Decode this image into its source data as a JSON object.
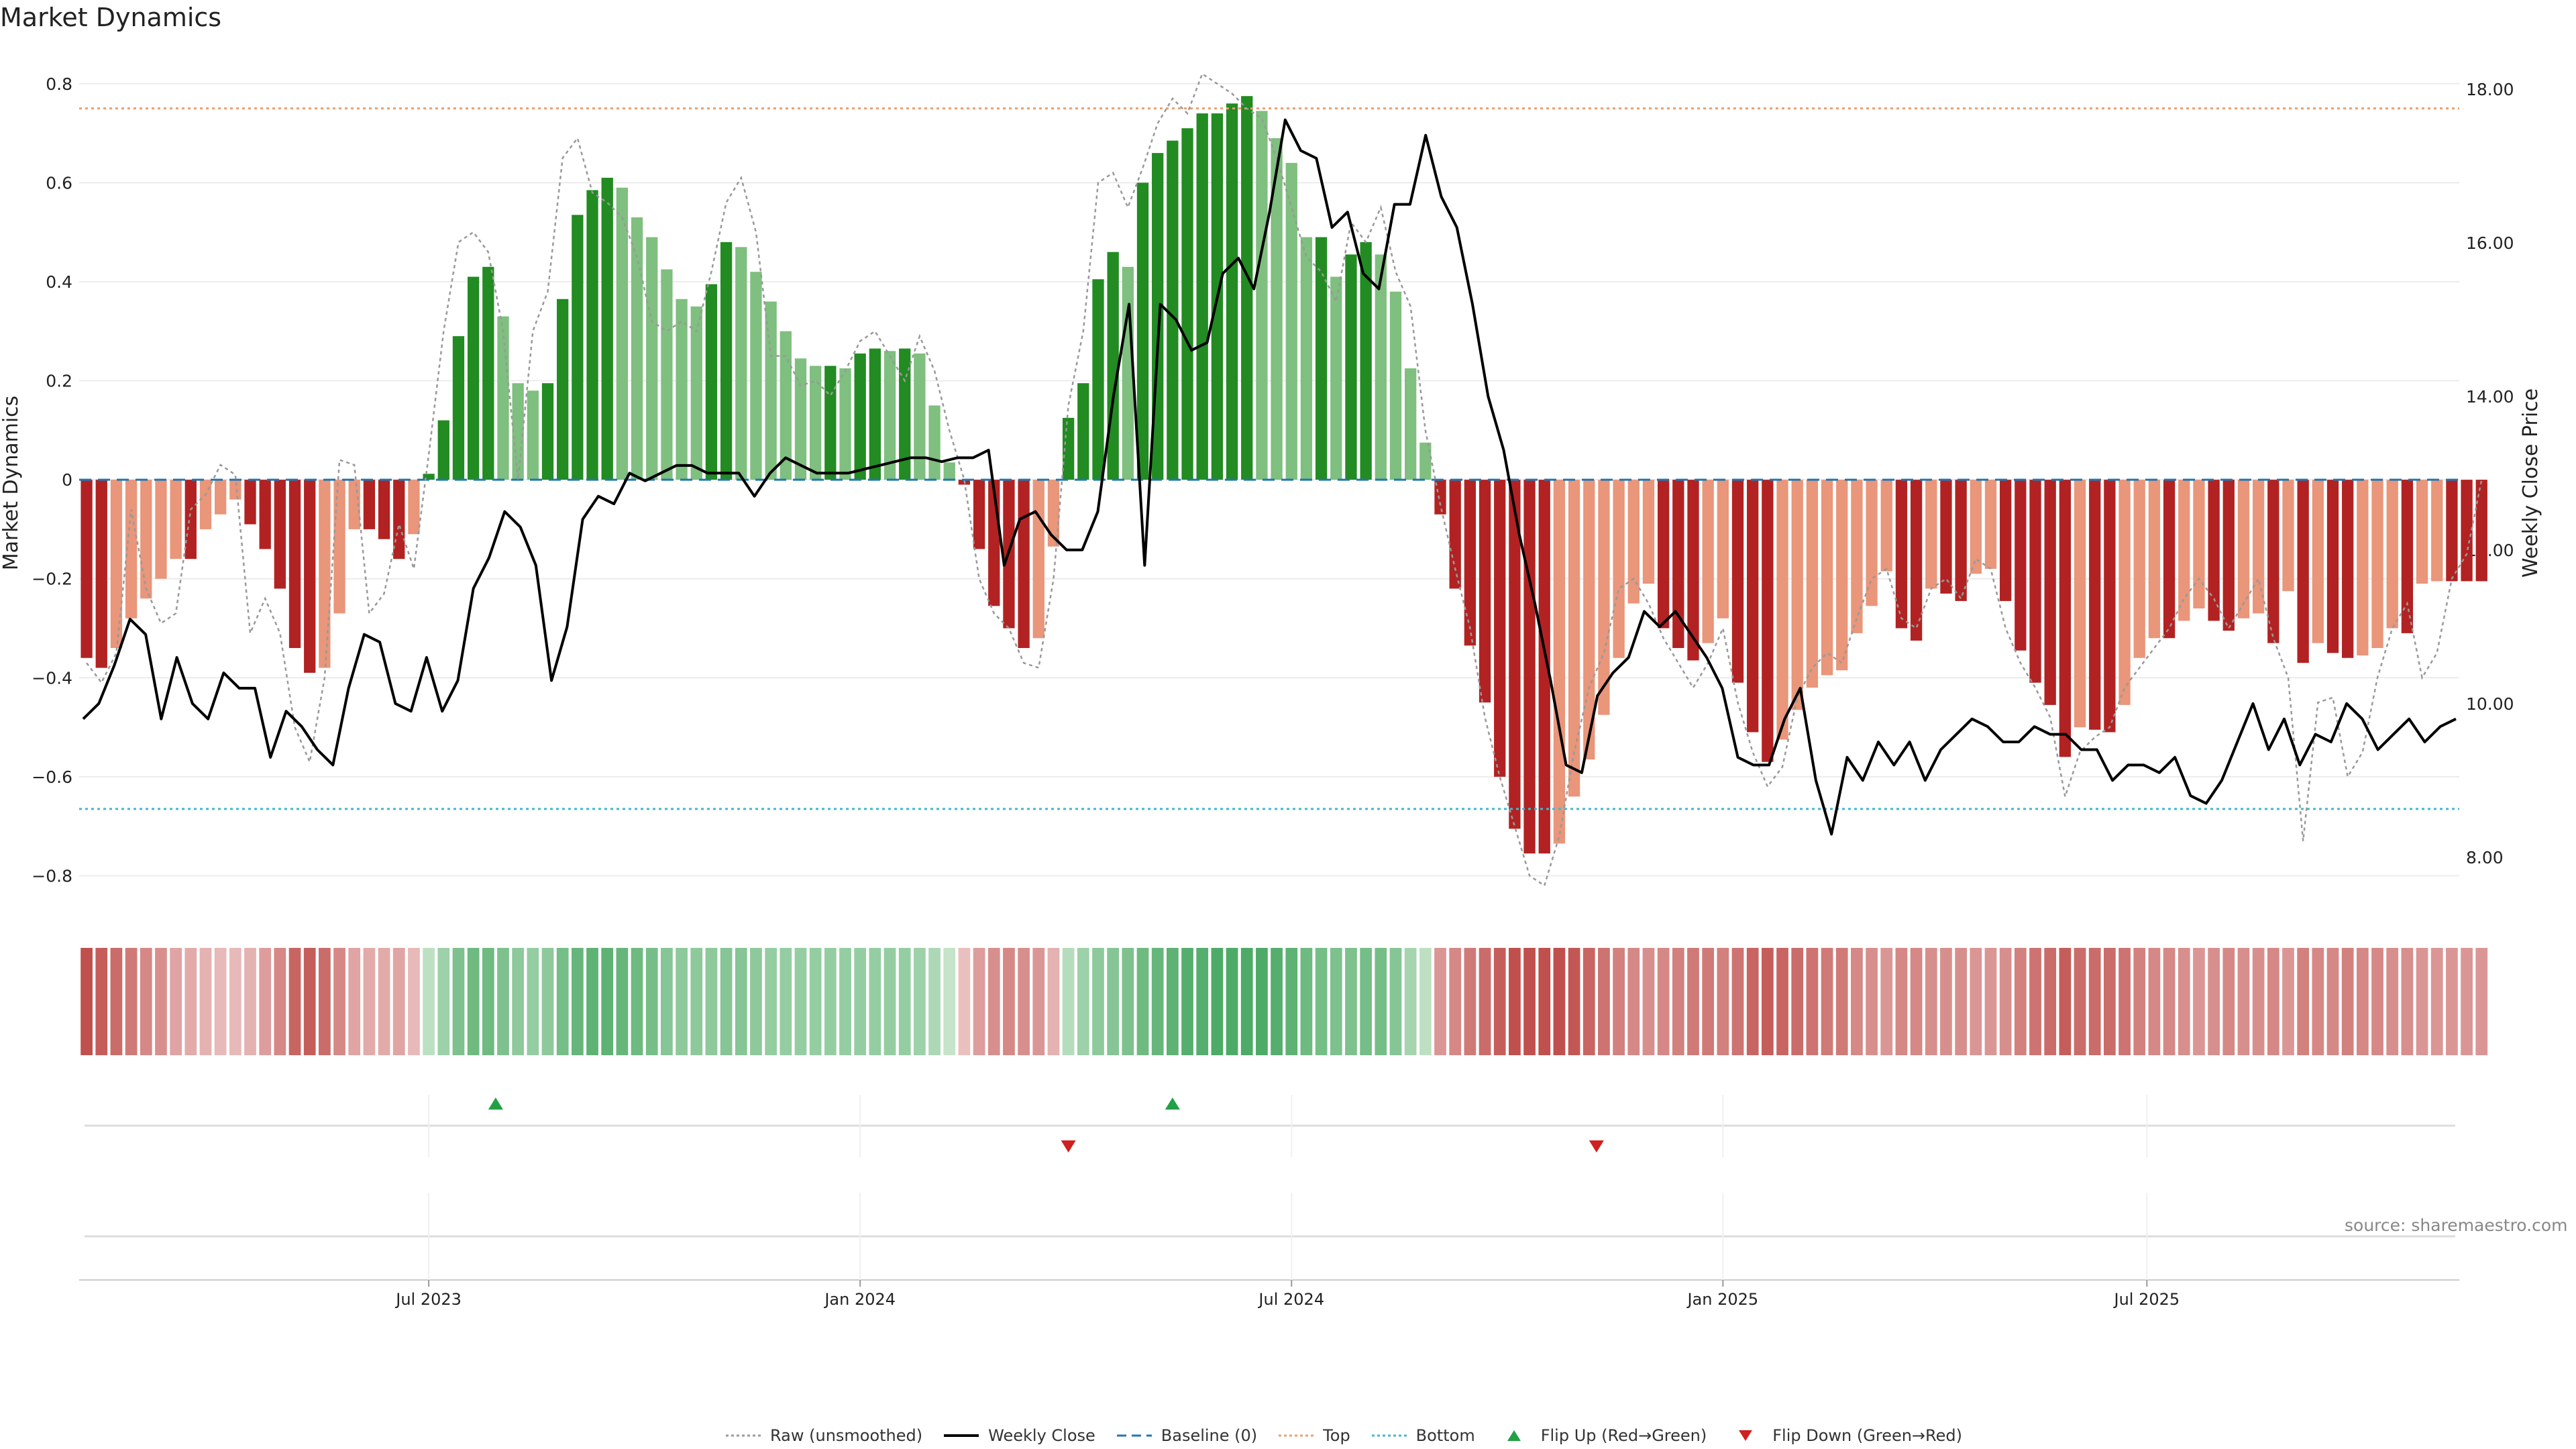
{
  "title": "Market Dynamics",
  "source": "source: sharemaestro.com",
  "colors": {
    "strong_green": "#228B22",
    "light_green": "#7FBF7F",
    "strong_red": "#B22222",
    "light_red": "#E9967A",
    "raw_line": "#999999",
    "weekly_close": "#000000",
    "baseline": "#1f77b4",
    "top_line": "#E9A070",
    "bottom_line": "#40B8D0",
    "flip_up": "#22A045",
    "flip_down": "#D02020"
  },
  "legend": [
    {
      "label": "Raw (unsmoothed)",
      "style": "dotted",
      "color": "#999999",
      "icon": "dotted-line"
    },
    {
      "label": "Weekly Close",
      "style": "solid",
      "color": "#000000",
      "icon": "solid-line"
    },
    {
      "label": "Baseline (0)",
      "style": "dashed",
      "color": "#1f77b4",
      "icon": "dashed-line"
    },
    {
      "label": "Top",
      "style": "dotted",
      "color": "#E9A070",
      "icon": "dotted-line"
    },
    {
      "label": "Bottom",
      "style": "dotted",
      "color": "#40B8D0",
      "icon": "dotted-line"
    },
    {
      "label": "Flip Up (Red→Green)",
      "style": "triangle-up",
      "color": "#22A045",
      "icon": "triangle-up-icon"
    },
    {
      "label": "Flip Down (Green→Red)",
      "style": "triangle-down",
      "color": "#D02020",
      "icon": "triangle-down-icon"
    }
  ],
  "chart_data": {
    "type": "bar",
    "title": "Market Dynamics",
    "ylabel_left": "Market Dynamics",
    "ylabel_right": "Weekly Close Price",
    "ylim_left": [
      -0.84,
      0.82
    ],
    "ylim_right": [
      7.5,
      18.2
    ],
    "yticks_left": [
      {
        "v": 0.8,
        "label": "0.8"
      },
      {
        "v": 0.6,
        "label": "0.6"
      },
      {
        "v": 0.4,
        "label": "0.4"
      },
      {
        "v": 0.2,
        "label": "0.2"
      },
      {
        "v": 0,
        "label": "0"
      },
      {
        "v": -0.2,
        "label": "−0.2"
      },
      {
        "v": -0.4,
        "label": "−0.4"
      },
      {
        "v": -0.6,
        "label": "−0.6"
      },
      {
        "v": -0.8,
        "label": "−0.8"
      }
    ],
    "yticks_right": [
      {
        "v": 18,
        "label": "18.00"
      },
      {
        "v": 16,
        "label": "16.00"
      },
      {
        "v": 14,
        "label": "14.00"
      },
      {
        "v": 12,
        "label": "12.00"
      },
      {
        "v": 10,
        "label": "10.00"
      },
      {
        "v": 8,
        "label": "8.00"
      }
    ],
    "xticks": [
      {
        "index": 23,
        "label": "Jul 2023"
      },
      {
        "index": 52,
        "label": "Jan 2024"
      },
      {
        "index": 81,
        "label": "Jul 2024"
      },
      {
        "index": 110,
        "label": "Jan 2025"
      },
      {
        "index": 138.5,
        "label": "Jul 2025"
      }
    ],
    "grid": true,
    "legend_position": "bottom-center",
    "top_level": 0.75,
    "bottom_level": -0.665,
    "baseline": 0,
    "weeks": 160,
    "dynamics": [
      -0.36,
      -0.38,
      -0.34,
      -0.28,
      -0.24,
      -0.2,
      -0.16,
      -0.16,
      -0.1,
      -0.07,
      -0.04,
      -0.09,
      -0.14,
      -0.22,
      -0.34,
      -0.39,
      -0.38,
      -0.27,
      -0.1,
      -0.1,
      -0.12,
      -0.16,
      -0.11,
      0.012,
      0.12,
      0.29,
      0.41,
      0.43,
      0.33,
      0.195,
      0.18,
      0.195,
      0.365,
      0.535,
      0.585,
      0.61,
      0.59,
      0.53,
      0.49,
      0.425,
      0.365,
      0.35,
      0.395,
      0.48,
      0.47,
      0.42,
      0.36,
      0.3,
      0.245,
      0.23,
      0.23,
      0.225,
      0.255,
      0.265,
      0.26,
      0.265,
      0.255,
      0.15,
      0.035,
      -0.01,
      -0.14,
      -0.255,
      -0.3,
      -0.34,
      -0.32,
      -0.135,
      0.125,
      0.195,
      0.405,
      0.46,
      0.43,
      0.6,
      0.66,
      0.685,
      0.71,
      0.74,
      0.74,
      0.76,
      0.775,
      0.745,
      0.69,
      0.64,
      0.49,
      0.49,
      0.41,
      0.455,
      0.48,
      0.455,
      0.38,
      0.225,
      0.075,
      -0.07,
      -0.22,
      -0.335,
      -0.45,
      -0.6,
      -0.705,
      -0.755,
      -0.755,
      -0.735,
      -0.64,
      -0.565,
      -0.475,
      -0.36,
      -0.25,
      -0.21,
      -0.3,
      -0.34,
      -0.365,
      -0.33,
      -0.28,
      -0.41,
      -0.51,
      -0.57,
      -0.525,
      -0.465,
      -0.42,
      -0.395,
      -0.385,
      -0.31,
      -0.255,
      -0.185,
      -0.3,
      -0.325,
      -0.22,
      -0.23,
      -0.245,
      -0.19,
      -0.18,
      -0.245,
      -0.345,
      -0.41,
      -0.455,
      -0.56,
      -0.5,
      -0.505,
      -0.51,
      -0.455,
      -0.36,
      -0.32,
      -0.32,
      -0.285,
      -0.26,
      -0.285,
      -0.305,
      -0.28,
      -0.27,
      -0.33,
      -0.225,
      -0.37,
      -0.33,
      -0.35,
      -0.36,
      -0.355,
      -0.34,
      -0.3,
      -0.31,
      -0.21,
      -0.205,
      -0.205,
      -0.205,
      -0.205
    ],
    "raw": [
      -0.37,
      -0.41,
      -0.35,
      -0.06,
      -0.22,
      -0.29,
      -0.27,
      -0.06,
      -0.03,
      0.03,
      0.01,
      -0.31,
      -0.24,
      -0.31,
      -0.5,
      -0.57,
      -0.4,
      0.04,
      0.03,
      -0.27,
      -0.23,
      -0.09,
      -0.18,
      0.05,
      0.3,
      0.48,
      0.5,
      0.46,
      0.3,
      0.0,
      0.3,
      0.38,
      0.65,
      0.69,
      0.58,
      0.56,
      0.53,
      0.45,
      0.32,
      0.3,
      0.32,
      0.3,
      0.42,
      0.56,
      0.61,
      0.5,
      0.25,
      0.25,
      0.19,
      0.2,
      0.17,
      0.22,
      0.28,
      0.3,
      0.25,
      0.2,
      0.29,
      0.22,
      0.1,
      0.0,
      -0.2,
      -0.27,
      -0.3,
      -0.37,
      -0.38,
      -0.2,
      0.15,
      0.3,
      0.6,
      0.62,
      0.55,
      0.63,
      0.72,
      0.77,
      0.74,
      0.82,
      0.8,
      0.78,
      0.75,
      0.73,
      0.65,
      0.55,
      0.45,
      0.42,
      0.36,
      0.52,
      0.48,
      0.55,
      0.42,
      0.35,
      0.1,
      -0.05,
      -0.18,
      -0.3,
      -0.48,
      -0.6,
      -0.7,
      -0.8,
      -0.82,
      -0.72,
      -0.55,
      -0.42,
      -0.35,
      -0.22,
      -0.2,
      -0.25,
      -0.32,
      -0.37,
      -0.42,
      -0.37,
      -0.3,
      -0.45,
      -0.55,
      -0.62,
      -0.58,
      -0.44,
      -0.38,
      -0.35,
      -0.37,
      -0.28,
      -0.2,
      -0.18,
      -0.28,
      -0.3,
      -0.22,
      -0.2,
      -0.24,
      -0.16,
      -0.18,
      -0.3,
      -0.37,
      -0.42,
      -0.48,
      -0.64,
      -0.55,
      -0.52,
      -0.5,
      -0.42,
      -0.38,
      -0.34,
      -0.3,
      -0.24,
      -0.2,
      -0.24,
      -0.3,
      -0.25,
      -0.2,
      -0.32,
      -0.4,
      -0.73,
      -0.45,
      -0.44,
      -0.6,
      -0.55,
      -0.4,
      -0.3,
      -0.25,
      -0.4,
      -0.35,
      -0.2,
      -0.15,
      0.0
    ],
    "price_weeks": 153,
    "weekly_close": [
      9.8,
      10.0,
      10.5,
      11.1,
      10.9,
      9.8,
      10.6,
      10.0,
      9.8,
      10.4,
      10.2,
      10.2,
      9.3,
      9.9,
      9.7,
      9.4,
      9.2,
      10.2,
      10.9,
      10.8,
      10.0,
      9.9,
      10.6,
      9.9,
      10.3,
      11.5,
      11.9,
      12.5,
      12.3,
      11.8,
      10.3,
      11.0,
      12.4,
      12.7,
      12.6,
      13.0,
      12.9,
      13.0,
      13.1,
      13.1,
      13.0,
      13.0,
      13.0,
      12.7,
      13.0,
      13.2,
      13.1,
      13.0,
      13.0,
      13.0,
      13.05,
      13.1,
      13.15,
      13.2,
      13.2,
      13.15,
      13.2,
      13.2,
      13.3,
      11.8,
      12.4,
      12.5,
      12.2,
      12.0,
      12.0,
      12.5,
      14.0,
      15.2,
      11.8,
      15.2,
      15.0,
      14.6,
      14.7,
      15.6,
      15.8,
      15.4,
      16.4,
      17.6,
      17.2,
      17.1,
      16.2,
      16.4,
      15.6,
      15.4,
      16.5,
      16.5,
      17.4,
      16.6,
      16.2,
      15.2,
      14.0,
      13.3,
      12.2,
      11.3,
      10.3,
      9.2,
      9.1,
      10.1,
      10.4,
      10.6,
      11.2,
      11.0,
      11.2,
      10.9,
      10.6,
      10.2,
      9.3,
      9.2,
      9.2,
      9.8,
      10.2,
      9.0,
      8.3,
      9.3,
      9.0,
      9.5,
      9.2,
      9.5,
      9.0,
      9.4,
      9.6,
      9.8,
      9.7,
      9.5,
      9.5,
      9.7,
      9.6,
      9.6,
      9.4,
      9.4,
      9.0,
      9.2,
      9.2,
      9.1,
      9.3,
      8.8,
      8.7,
      9.0,
      9.5,
      10.0,
      9.4,
      9.8,
      9.2,
      9.6,
      9.5,
      10.0,
      9.8,
      9.4,
      9.6,
      9.8,
      9.5,
      9.7,
      9.8
    ],
    "heat_strip": [
      -1.0,
      -0.9,
      -0.8,
      -0.7,
      -0.6,
      -0.55,
      -0.4,
      -0.35,
      -0.3,
      -0.25,
      -0.25,
      -0.3,
      -0.45,
      -0.6,
      -0.85,
      -0.9,
      -0.8,
      -0.6,
      -0.4,
      -0.35,
      -0.35,
      -0.4,
      -0.25,
      0.2,
      0.4,
      0.6,
      0.7,
      0.7,
      0.6,
      0.5,
      0.45,
      0.5,
      0.65,
      0.75,
      0.8,
      0.8,
      0.75,
      0.7,
      0.65,
      0.55,
      0.5,
      0.5,
      0.5,
      0.55,
      0.55,
      0.5,
      0.45,
      0.45,
      0.45,
      0.45,
      0.45,
      0.45,
      0.45,
      0.45,
      0.45,
      0.45,
      0.4,
      0.3,
      0.15,
      -0.2,
      -0.45,
      -0.55,
      -0.6,
      -0.55,
      -0.5,
      -0.3,
      0.25,
      0.4,
      0.5,
      0.55,
      0.6,
      0.7,
      0.75,
      0.8,
      0.85,
      0.85,
      0.9,
      0.9,
      0.9,
      0.9,
      0.85,
      0.8,
      0.7,
      0.65,
      0.6,
      0.6,
      0.65,
      0.65,
      0.55,
      0.35,
      0.2,
      -0.5,
      -0.6,
      -0.7,
      -0.8,
      -0.9,
      -1.0,
      -1.0,
      -1.0,
      -1.0,
      -0.95,
      -0.85,
      -0.75,
      -0.65,
      -0.6,
      -0.55,
      -0.6,
      -0.65,
      -0.7,
      -0.7,
      -0.65,
      -0.75,
      -0.85,
      -0.9,
      -0.85,
      -0.8,
      -0.75,
      -0.7,
      -0.7,
      -0.6,
      -0.55,
      -0.5,
      -0.6,
      -0.6,
      -0.55,
      -0.55,
      -0.55,
      -0.5,
      -0.5,
      -0.55,
      -0.65,
      -0.75,
      -0.8,
      -0.9,
      -0.8,
      -0.8,
      -0.8,
      -0.75,
      -0.65,
      -0.6,
      -0.6,
      -0.55,
      -0.5,
      -0.55,
      -0.6,
      -0.55,
      -0.55,
      -0.6,
      -0.5,
      -0.65,
      -0.6,
      -0.6,
      -0.65,
      -0.6,
      -0.6,
      -0.55,
      -0.55,
      -0.5,
      -0.5,
      -0.5,
      -0.5,
      -0.5
    ],
    "flips": [
      {
        "type": "up",
        "index": 27.5
      },
      {
        "type": "down",
        "index": 66
      },
      {
        "type": "up",
        "index": 73
      },
      {
        "type": "down",
        "index": 101.5
      }
    ]
  }
}
